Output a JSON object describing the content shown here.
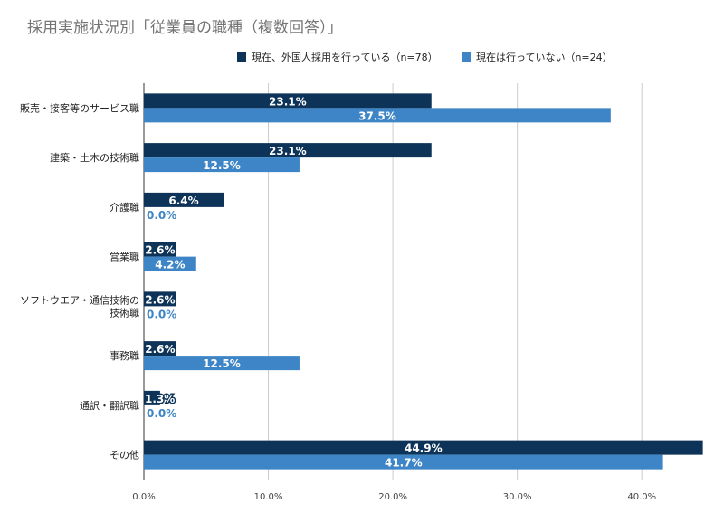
{
  "chart_data": {
    "type": "bar",
    "orientation": "horizontal",
    "title": "採用実施状況別「従業員の職種（複数回答）」",
    "categories": [
      [
        "販売・接客等のサービス職"
      ],
      [
        "建築・土木の技術職"
      ],
      [
        "介護職"
      ],
      [
        "営業職"
      ],
      [
        "ソフトウエア・通信技術の",
        "技術職"
      ],
      [
        "事務職"
      ],
      [
        "通訳・翻訳職"
      ],
      [
        "その他"
      ]
    ],
    "series": [
      {
        "name": "現在、外国人採用を行っている（n=78）",
        "color": "#0d3358",
        "values": [
          23.1,
          23.1,
          6.4,
          2.6,
          2.6,
          2.6,
          1.3,
          44.9
        ],
        "labels": [
          "23.1%",
          "23.1%",
          "6.4%",
          "2.6%",
          "2.6%",
          "2.6%",
          "1.3%",
          "44.9%"
        ]
      },
      {
        "name": "現在は行っていない（n=24）",
        "color": "#3d85c6",
        "values": [
          37.5,
          12.5,
          0.0,
          4.2,
          0.0,
          12.5,
          0.0,
          41.7
        ],
        "labels": [
          "37.5%",
          "12.5%",
          "0.0%",
          "4.2%",
          "0.0%",
          "12.5%",
          "0.0%",
          "41.7%"
        ]
      }
    ],
    "xlim": [
      0,
      45
    ],
    "ticks": [
      0,
      10,
      20,
      30,
      40
    ],
    "tick_labels": [
      "0.0%",
      "10.0%",
      "20.0%",
      "30.0%",
      "40.0%"
    ],
    "grid": true,
    "legend_position": "top-right",
    "xlabel": "",
    "ylabel": ""
  }
}
